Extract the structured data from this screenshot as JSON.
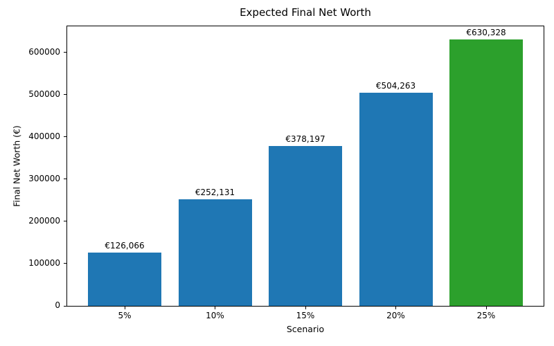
{
  "chart_data": {
    "type": "bar",
    "title": "Expected Final Net Worth",
    "xlabel": "Scenario",
    "ylabel": "Final Net Worth (€)",
    "categories": [
      "5%",
      "10%",
      "15%",
      "20%",
      "25%"
    ],
    "values": [
      126066,
      252131,
      378197,
      504263,
      630328
    ],
    "bar_labels": [
      "€126,066",
      "€252,131",
      "€378,197",
      "€504,263",
      "€630,328"
    ],
    "bar_colors": [
      "#1f77b4",
      "#1f77b4",
      "#1f77b4",
      "#1f77b4",
      "#2ca02c"
    ],
    "ylim": [
      0,
      661845
    ],
    "yticks": [
      0,
      100000,
      200000,
      300000,
      400000,
      500000,
      600000
    ],
    "grid": false,
    "legend": "none",
    "background_color": "#ffffff",
    "text_color": "#000000",
    "spine_color": "#000000"
  }
}
